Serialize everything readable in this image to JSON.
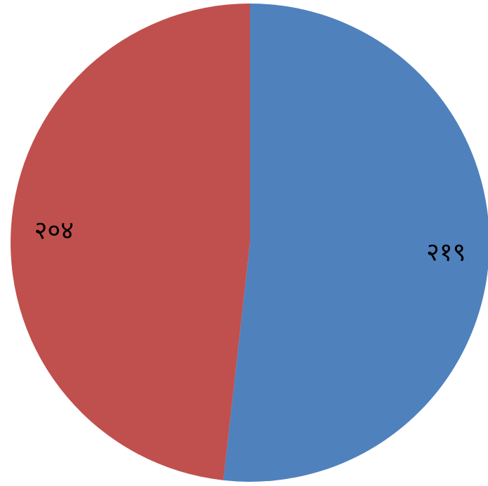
{
  "chart_data": {
    "type": "pie",
    "start_angle_deg": 0,
    "direction": "clockwise",
    "slices": [
      {
        "label": "२१९",
        "value": 219,
        "color": "#4F81BD"
      },
      {
        "label": "२०४",
        "value": 204,
        "color": "#C0504D"
      }
    ]
  }
}
